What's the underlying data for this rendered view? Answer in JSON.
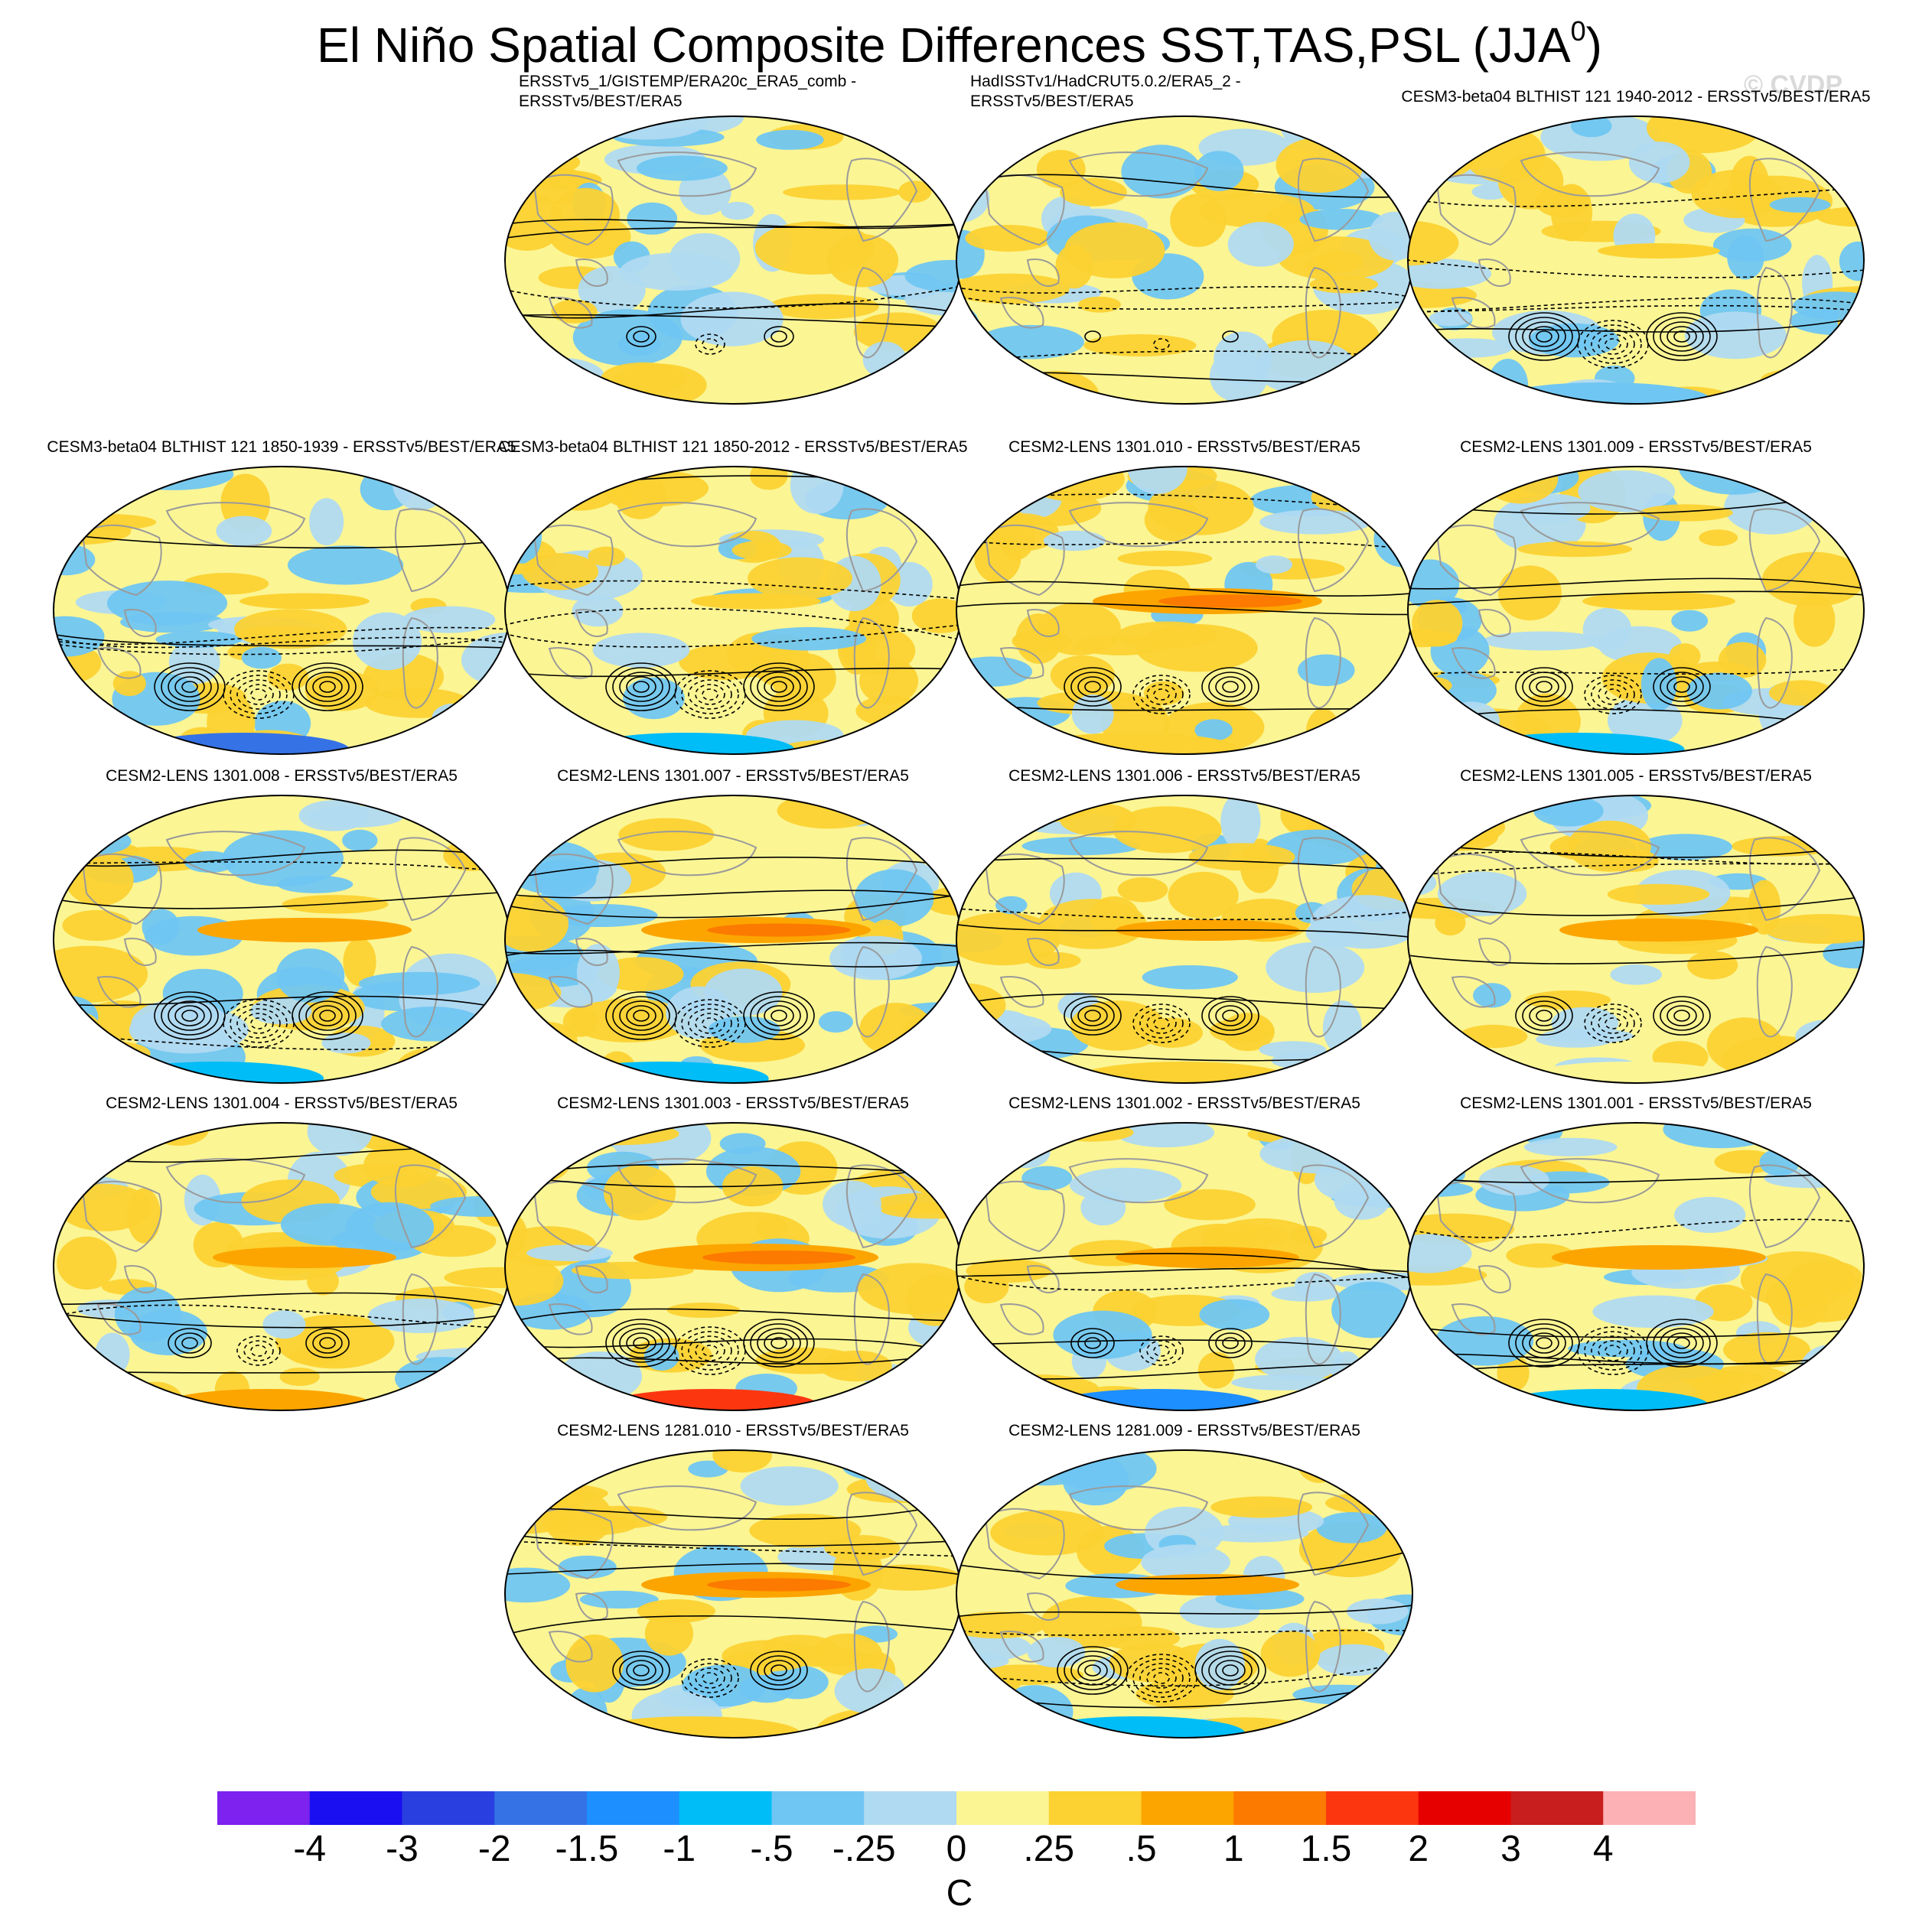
{
  "chart_data": {
    "type": "heatmap",
    "title": "El Niño Spatial Composite Differences SST,TAS,PSL (JJA",
    "title_superscript": "0",
    "title_close": ")",
    "watermark": "© CVDP",
    "projection": "global ellipse (Robinson-like), Pacific-centered",
    "overlay": "PSL difference contours (solid positive, dashed negative) on SST/TAS shading; grey coastlines",
    "panels": [
      {
        "label": [
          "ERSSTv5_1/GISTEMP/ERA20c_ERA5_comb -",
          "ERSSTv5/BEST/ERA5"
        ],
        "nino_strength": 0.05,
        "southern_pattern": 0.15,
        "antarctic": 0.0
      },
      {
        "label": [
          "HadISSTv1/HadCRUT5.0.2/ERA5_2 -",
          "ERSSTv5/BEST/ERA5"
        ],
        "nino_strength": 0.05,
        "southern_pattern": 0.1,
        "antarctic": 0.0
      },
      {
        "label": [
          "CESM3-beta04 BLTHIST 121 1940-2012 - ERSSTv5/BEST/ERA5"
        ],
        "nino_strength": 0.2,
        "southern_pattern": 0.9,
        "antarctic": -0.3
      },
      {
        "label": [
          "CESM3-beta04 BLTHIST 121 1850-1939 - ERSSTv5/BEST/ERA5"
        ],
        "nino_strength": 0.25,
        "southern_pattern": 1.0,
        "antarctic": -1.6
      },
      {
        "label": [
          "CESM3-beta04 BLTHIST 121 1850-2012 - ERSSTv5/BEST/ERA5"
        ],
        "nino_strength": 0.25,
        "southern_pattern": 0.9,
        "antarctic": -0.9
      },
      {
        "label": [
          "CESM2-LENS 1301.010 - ERSSTv5/BEST/ERA5"
        ],
        "nino_strength": 0.9,
        "southern_pattern": 0.8,
        "antarctic": 0.4
      },
      {
        "label": [
          "CESM2-LENS 1301.009 - ERSSTv5/BEST/ERA5"
        ],
        "nino_strength": 0.4,
        "southern_pattern": 0.8,
        "antarctic": -0.7
      },
      {
        "label": [
          "CESM2-LENS 1301.008 - ERSSTv5/BEST/ERA5"
        ],
        "nino_strength": 0.8,
        "southern_pattern": 0.9,
        "antarctic": -0.8
      },
      {
        "label": [
          "CESM2-LENS 1301.007 - ERSSTv5/BEST/ERA5"
        ],
        "nino_strength": 0.9,
        "southern_pattern": 0.9,
        "antarctic": -1.0
      },
      {
        "label": [
          "CESM2-LENS 1301.006 - ERSSTv5/BEST/ERA5"
        ],
        "nino_strength": 0.6,
        "southern_pattern": 0.8,
        "antarctic": 0.3
      },
      {
        "label": [
          "CESM2-LENS 1301.005 - ERSSTv5/BEST/ERA5"
        ],
        "nino_strength": 0.7,
        "southern_pattern": 0.7,
        "antarctic": 0.2
      },
      {
        "label": [
          "CESM2-LENS 1301.004 - ERSSTv5/BEST/ERA5"
        ],
        "nino_strength": 0.6,
        "southern_pattern": 0.6,
        "antarctic": 0.8
      },
      {
        "label": [
          "CESM2-LENS 1301.003 - ERSSTv5/BEST/ERA5"
        ],
        "nino_strength": 1.0,
        "southern_pattern": 0.9,
        "antarctic": 1.8
      },
      {
        "label": [
          "CESM2-LENS 1301.002 - ERSSTv5/BEST/ERA5"
        ],
        "nino_strength": 0.6,
        "southern_pattern": 0.6,
        "antarctic": -1.2
      },
      {
        "label": [
          "CESM2-LENS 1301.001 - ERSSTv5/BEST/ERA5"
        ],
        "nino_strength": 0.8,
        "southern_pattern": 1.0,
        "antarctic": -0.9
      },
      {
        "label": [
          "CESM2-LENS 1281.010 - ERSSTv5/BEST/ERA5"
        ],
        "nino_strength": 0.9,
        "southern_pattern": 0.7,
        "antarctic": 0.3
      },
      {
        "label": [
          "CESM2-LENS 1281.009 - ERSSTv5/BEST/ERA5"
        ],
        "nino_strength": 0.6,
        "southern_pattern": 0.9,
        "antarctic": -0.8
      }
    ],
    "colorbar": {
      "colors": [
        "#7d22ef",
        "#1a0ff0",
        "#2a3fe0",
        "#3472e6",
        "#1e8fff",
        "#00bdf8",
        "#70c6f2",
        "#b0daf1",
        "#fbf594",
        "#fcd232",
        "#fca500",
        "#fc7a00",
        "#fc3710",
        "#e60000",
        "#c81e1e",
        "#fcb1b4"
      ],
      "labels": [
        "-4",
        "-3",
        "-2",
        "-1.5",
        "-1",
        "-.5",
        "-.25",
        "0",
        ".25",
        ".5",
        "1",
        "1.5",
        "2",
        "3",
        "4"
      ],
      "units": "C"
    }
  }
}
